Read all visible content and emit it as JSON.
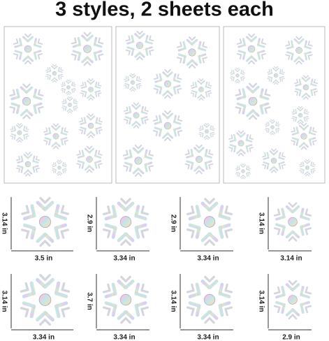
{
  "title": "3 styles, 2 sheets each",
  "items": [
    {
      "height": "3.14 in",
      "width": "3.5 in"
    },
    {
      "height": "2.9 in",
      "width": "3.34 in"
    },
    {
      "height": "2.9 in",
      "width": "3.34 in"
    },
    {
      "height": "3.14 in",
      "width": "3.14 in"
    },
    {
      "height": "3.14 in",
      "width": "3.34 in"
    },
    {
      "height": "3.7 in",
      "width": "3.34 in"
    },
    {
      "height": "3.14 in",
      "width": "3.34 in"
    },
    {
      "height": "3.14 in",
      "width": "2.9 in"
    }
  ]
}
